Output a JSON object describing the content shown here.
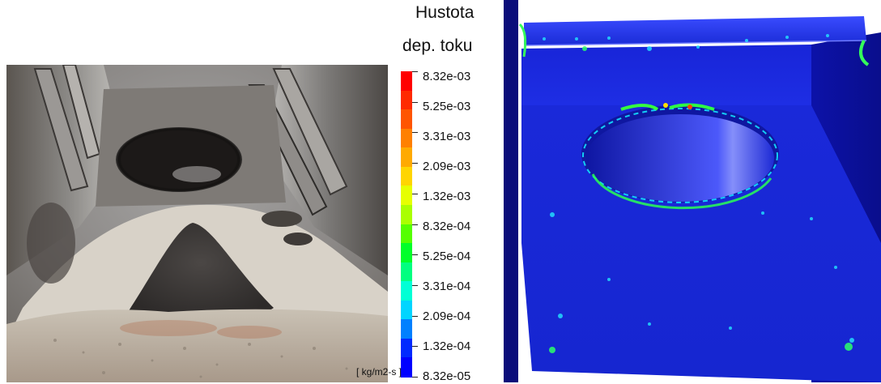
{
  "legend": {
    "title_line1": "Hustota",
    "title_line2": "dep. toku",
    "unit": "[ kg/m2-s ]",
    "ticks": [
      "8.32e-03",
      "5.25e-03",
      "3.31e-03",
      "2.09e-03",
      "1.32e-03",
      "8.32e-04",
      "5.25e-04",
      "3.31e-04",
      "2.09e-04",
      "1.32e-04",
      "8.32e-05"
    ],
    "colors": [
      "#ff0000",
      "#ff2a00",
      "#ff5500",
      "#ff8000",
      "#ffaa00",
      "#ffd500",
      "#e6ff00",
      "#aaff00",
      "#55ff00",
      "#00ff2a",
      "#00ff80",
      "#00ffd5",
      "#00d5ff",
      "#0080ff",
      "#002aff",
      "#0000ff"
    ]
  }
}
